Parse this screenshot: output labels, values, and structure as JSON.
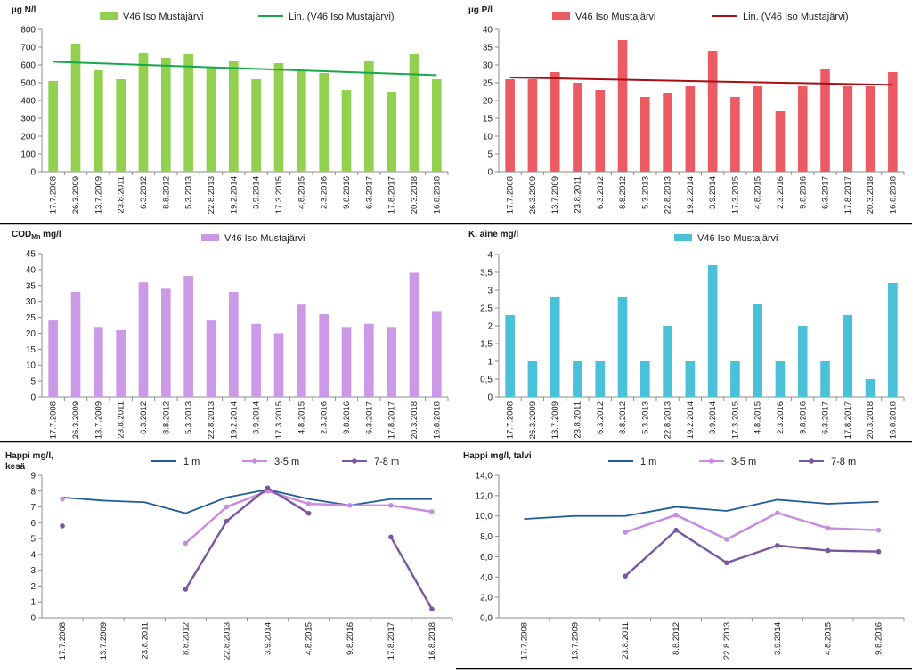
{
  "chart_data": [
    {
      "id": "n",
      "type": "bar",
      "ylabel": "µg N/l",
      "series_name": "V46 Iso Mustajärvi",
      "trend_name": "Lin. (V46 Iso Mustajärvi)",
      "categories": [
        "17.7.2008",
        "26.3.2009",
        "13.7.2009",
        "23.8.2011",
        "6.3.2012",
        "8.8.2012",
        "5.3.2013",
        "22.8.2013",
        "19.2.2014",
        "3.9.2014",
        "17.3.2015",
        "4.8.2015",
        "2.3.2016",
        "9.8.2016",
        "6.3.2017",
        "17.8.2017",
        "20.3.2018",
        "16.8.2018"
      ],
      "values": [
        510,
        720,
        570,
        520,
        670,
        640,
        660,
        590,
        620,
        520,
        610,
        570,
        555,
        460,
        620,
        450,
        660,
        520
      ],
      "trend": [
        618,
        543
      ],
      "ylim": [
        0,
        800
      ],
      "yticks": [
        "0",
        "100",
        "200",
        "300",
        "400",
        "500",
        "600",
        "700",
        "800"
      ],
      "bar_color": "#92d050",
      "trend_color": "#17a84b"
    },
    {
      "id": "p",
      "type": "bar",
      "ylabel": "µg P/l",
      "series_name": "V46 Iso Mustajärvi",
      "trend_name": "Lin. (V46 Iso Mustajärvi)",
      "categories": [
        "17.7.2008",
        "26.3.2009",
        "13.7.2009",
        "23.8.2011",
        "6.3.2012",
        "8.8.2012",
        "5.3.2013",
        "22.8.2013",
        "19.2.2014",
        "3.9.2014",
        "17.3.2015",
        "4.8.2015",
        "2.3.2016",
        "9.8.2016",
        "6.3.2017",
        "17.8.2017",
        "20.3.2018",
        "16.8.2018"
      ],
      "values": [
        26,
        26,
        28,
        25,
        23,
        37,
        21,
        22,
        24,
        34,
        21,
        24,
        17,
        24,
        29,
        24,
        24,
        28
      ],
      "trend": [
        26.5,
        24.4
      ],
      "ylim": [
        0,
        40
      ],
      "yticks": [
        "0",
        "5",
        "10",
        "15",
        "20",
        "25",
        "30",
        "35",
        "40"
      ],
      "bar_color": "#ec5b63",
      "trend_color": "#a50f15"
    },
    {
      "id": "cod",
      "type": "bar",
      "ylabel": "COD",
      "ylabel_sub": "Mn",
      "ylabel_unit": " mg/l",
      "series_name": "V46 Iso Mustajärvi",
      "categories": [
        "17.7.2008",
        "26.3.2009",
        "13.7.2009",
        "23.8.2011",
        "6.3.2012",
        "8.8.2012",
        "5.3.2013",
        "22.8.2013",
        "19.2.2014",
        "3.9.2014",
        "17.3.2015",
        "4.8.2015",
        "2.3.2016",
        "9.8.2016",
        "6.3.2017",
        "17.8.2017",
        "20.3.2018",
        "16.8.2018"
      ],
      "values": [
        24,
        33,
        22,
        21,
        36,
        34,
        38,
        24,
        33,
        23,
        20,
        29,
        26,
        22,
        23,
        22,
        39,
        27
      ],
      "ylim": [
        0,
        45
      ],
      "yticks": [
        "0",
        "5",
        "10",
        "15",
        "20",
        "25",
        "30",
        "35",
        "40",
        "45"
      ],
      "bar_color": "#cc99e6"
    },
    {
      "id": "k",
      "type": "bar",
      "ylabel": "K. aine mg/l",
      "series_name": "V46 Iso Mustajärvi",
      "categories": [
        "17.7.2008",
        "26.3.2009",
        "13.7.2009",
        "23.8.2011",
        "6.3.2012",
        "8.8.2012",
        "5.3.2013",
        "22.8.2013",
        "19.2.2014",
        "3.9.2014",
        "17.3.2015",
        "4.8.2015",
        "2.3.2016",
        "9.8.2016",
        "6.3.2017",
        "17.8.2017",
        "20.3.2018",
        "16.8.2018"
      ],
      "values": [
        2.3,
        1,
        2.8,
        1,
        1,
        2.8,
        1,
        2,
        1,
        3.7,
        1,
        2.6,
        1,
        2,
        1,
        2.3,
        0.5,
        3.2
      ],
      "ylim": [
        0,
        4
      ],
      "yticks": [
        "0",
        "0,5",
        "1",
        "1,5",
        "2",
        "2,5",
        "3",
        "3,5",
        "4"
      ],
      "bar_color": "#4bc0d9"
    },
    {
      "id": "ok",
      "type": "line",
      "ylabel": "Happi mg/l,",
      "ylabel2": "kesä",
      "categories": [
        "17.7.2008",
        "13.7.2009",
        "23.8.2011",
        "8.8.2012",
        "22.8.2013",
        "3.9.2014",
        "4.8.2015",
        "9.8.2016",
        "17.8.2017",
        "16.8.2018"
      ],
      "ylim": [
        0,
        9
      ],
      "yticks": [
        "0",
        "1",
        "2",
        "3",
        "4",
        "5",
        "6",
        "7",
        "8",
        "9"
      ],
      "series": [
        {
          "name": "1 m",
          "color": "#1f5c99",
          "marker": false,
          "values": [
            7.6,
            7.4,
            7.3,
            6.6,
            7.6,
            8.1,
            7.5,
            7.1,
            7.5,
            7.5
          ]
        },
        {
          "name": "3-5 m",
          "color": "#c98be0",
          "marker": true,
          "values": [
            7.5,
            null,
            null,
            4.7,
            7.0,
            8.0,
            7.2,
            7.1,
            7.1,
            6.7
          ]
        },
        {
          "name": "7-8 m",
          "color": "#7a579e",
          "marker": true,
          "values": [
            5.8,
            null,
            null,
            1.8,
            6.1,
            8.2,
            6.6,
            null,
            5.1,
            0.55
          ]
        }
      ]
    },
    {
      "id": "ot",
      "type": "line",
      "ylabel": "Happi mg/l, talvi",
      "categories": [
        "17.7.2008",
        "13.7.2009",
        "23.8.2011",
        "8.8.2012",
        "22.8.2013",
        "3.9.2014",
        "4.8.2015",
        "9.8.2016"
      ],
      "ylim": [
        0,
        14
      ],
      "yticks": [
        "0,0",
        "2,0",
        "4,0",
        "6,0",
        "8,0",
        "10,0",
        "12,0",
        "14,0"
      ],
      "series": [
        {
          "name": "1 m",
          "color": "#1f5c99",
          "marker": false,
          "values": [
            9.7,
            10.0,
            10.0,
            10.9,
            10.5,
            11.6,
            11.2,
            11.4
          ]
        },
        {
          "name": "3-5 m",
          "color": "#c98be0",
          "marker": true,
          "values": [
            null,
            null,
            8.4,
            10.1,
            7.7,
            10.3,
            8.8,
            8.6
          ]
        },
        {
          "name": "7-8 m",
          "color": "#7a579e",
          "marker": true,
          "values": [
            null,
            null,
            4.1,
            8.6,
            5.4,
            7.1,
            6.6,
            6.5
          ]
        }
      ]
    }
  ]
}
